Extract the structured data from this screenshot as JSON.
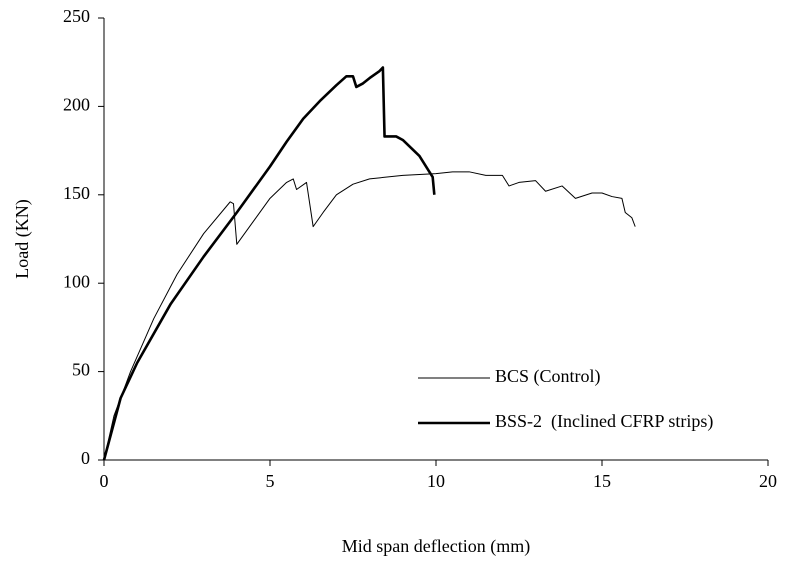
{
  "chart_data": {
    "type": "line",
    "xlabel": "Mid span deflection (mm)",
    "ylabel": "Load (KN)",
    "xlim": [
      0,
      20
    ],
    "xticks": [
      0,
      5,
      10,
      15,
      20
    ],
    "ylim": [
      0,
      250
    ],
    "yticks": [
      0,
      50,
      100,
      150,
      200,
      250
    ],
    "grid": false,
    "legend": "lower right",
    "series": [
      {
        "name": "BCS (Control)",
        "color": "#000000",
        "width": 1,
        "x": [
          0,
          0.3,
          0.8,
          1.5,
          2.2,
          3,
          3.8,
          3.9,
          4.0,
          4.5,
          5,
          5.5,
          5.7,
          5.8,
          6.1,
          6.3,
          6.6,
          7,
          7.5,
          8,
          9,
          10,
          10.5,
          11,
          11.5,
          12,
          12.2,
          12.5,
          13,
          13.3,
          13.8,
          14.2,
          14.7,
          15,
          15.3,
          15.6,
          15.7,
          15.9,
          16
        ],
        "values": [
          0,
          25,
          50,
          80,
          105,
          128,
          146,
          145,
          122,
          135,
          148,
          157,
          159,
          153,
          157,
          132,
          140,
          150,
          156,
          159,
          161,
          162,
          163,
          163,
          161,
          161,
          155,
          157,
          158,
          152,
          155,
          148,
          151,
          151,
          149,
          148,
          140,
          137,
          132
        ]
      },
      {
        "name": "BSS-2  (Inclined CFRP strips)",
        "color": "#000000",
        "width": 2.6,
        "x": [
          0,
          0.5,
          1,
          2,
          3,
          4,
          5,
          5.5,
          6,
          6.5,
          7,
          7.3,
          7.5,
          7.6,
          7.8,
          8,
          8.3,
          8.4,
          8.45,
          8.8,
          9,
          9.5,
          9.8,
          9.9,
          9.95
        ],
        "values": [
          0,
          35,
          55,
          88,
          115,
          140,
          166,
          180,
          193,
          203,
          212,
          217,
          217,
          211,
          213,
          216,
          220,
          222,
          183,
          183,
          181,
          172,
          163,
          160,
          150
        ]
      }
    ]
  }
}
